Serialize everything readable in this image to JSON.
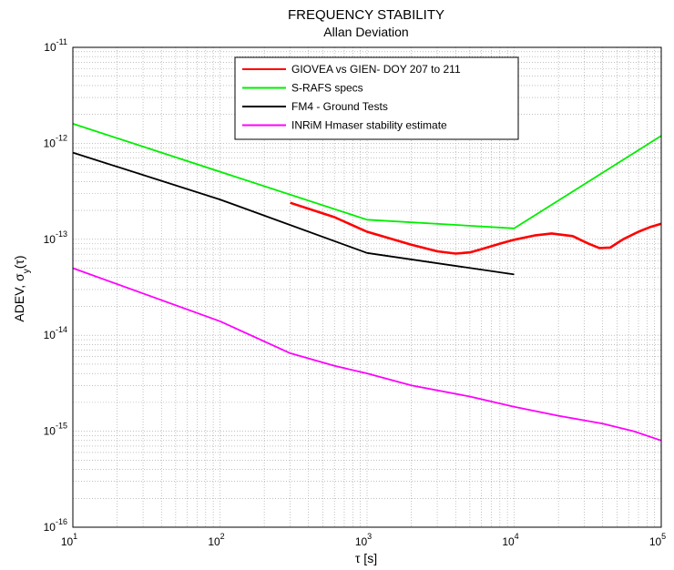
{
  "chart_data": {
    "type": "line",
    "title": "FREQUENCY STABILITY",
    "subtitle": "Allan Deviation",
    "xlabel": "τ [s]",
    "ylabel": "ADEV, σy(τ)",
    "xscale": "log",
    "yscale": "log",
    "xlim": [
      10,
      100000
    ],
    "ylim": [
      1e-16,
      1e-11
    ],
    "grid": true,
    "legend_position": "top-center",
    "x_ticks": [
      {
        "value": 10,
        "base": "10",
        "exp": "1"
      },
      {
        "value": 100,
        "base": "10",
        "exp": "2"
      },
      {
        "value": 1000,
        "base": "10",
        "exp": "3"
      },
      {
        "value": 10000,
        "base": "10",
        "exp": "4"
      },
      {
        "value": 100000,
        "base": "10",
        "exp": "5"
      }
    ],
    "y_ticks": [
      {
        "value": 1e-16,
        "base": "10",
        "exp": "-16"
      },
      {
        "value": 1e-15,
        "base": "10",
        "exp": "-15"
      },
      {
        "value": 1e-14,
        "base": "10",
        "exp": "-14"
      },
      {
        "value": 1e-13,
        "base": "10",
        "exp": "-13"
      },
      {
        "value": 1e-12,
        "base": "10",
        "exp": "-12"
      },
      {
        "value": 1e-11,
        "base": "10",
        "exp": "-11"
      }
    ],
    "series": [
      {
        "name": "GIOVEA vs GIEN- DOY 207 to 211",
        "color": "#ff0000",
        "x": [
          300,
          600,
          1000,
          2000,
          3000,
          4000,
          5000,
          6000,
          8000,
          10000,
          14000,
          18000,
          25000,
          32000,
          38000,
          45000,
          55000,
          70000,
          85000,
          100000
        ],
        "y": [
          2.4e-13,
          1.7e-13,
          1.2e-13,
          8.8e-14,
          7.5e-14,
          7.1e-14,
          7.3e-14,
          7.9e-14,
          9e-14,
          9.9e-14,
          1.1e-13,
          1.15e-13,
          1.08e-13,
          9e-14,
          8.1e-14,
          8.2e-14,
          1e-13,
          1.2e-13,
          1.35e-13,
          1.45e-13
        ]
      },
      {
        "name": "S-RAFS specs",
        "color": "#00ee00",
        "x": [
          10,
          1000,
          10000,
          100000
        ],
        "y": [
          1.6e-12,
          1.6e-13,
          1.3e-13,
          1.2e-12
        ]
      },
      {
        "name": "FM4 -  Ground Tests",
        "color": "#000000",
        "x": [
          10,
          100,
          1000,
          10000
        ],
        "y": [
          8e-13,
          2.6e-13,
          7.2e-14,
          4.3e-14
        ]
      },
      {
        "name": "INRiM Hmaser stability estimate",
        "color": "#ff00ff",
        "x": [
          10,
          100,
          300,
          600,
          1000,
          2000,
          5000,
          10000,
          20000,
          40000,
          65000,
          100000
        ],
        "y": [
          5e-14,
          1.4e-14,
          6.5e-15,
          4.8e-15,
          4e-15,
          3e-15,
          2.3e-15,
          1.8e-15,
          1.45e-15,
          1.2e-15,
          1e-15,
          8e-16
        ]
      }
    ]
  }
}
